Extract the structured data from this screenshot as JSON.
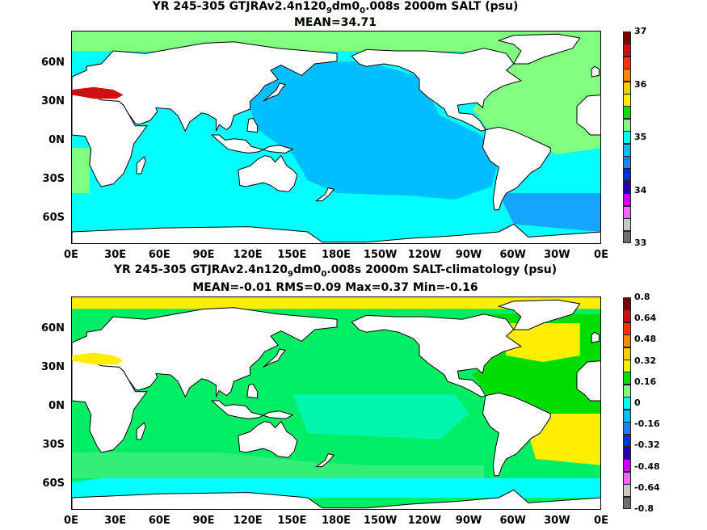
{
  "panels": [
    {
      "title_parts": [
        "YR 245-305 GTJRAv2.4n120",
        "9",
        "dm0",
        "0",
        ".008s 2000m SALT (psu)"
      ],
      "stats": "MEAN=34.71",
      "lat_labels": [
        "60N",
        "30N",
        "0N",
        "30S",
        "60S"
      ],
      "lon_labels": [
        "0E",
        "30E",
        "60E",
        "90E",
        "120E",
        "150E",
        "180E",
        "150W",
        "120W",
        "90W",
        "60W",
        "30W",
        "0E"
      ],
      "colorbar": {
        "labels": [
          "37",
          "36",
          "35",
          "34",
          "33"
        ],
        "colors": [
          "#7a0000",
          "#cc1111",
          "#ff3300",
          "#ff8800",
          "#ffcc00",
          "#ffee00",
          "#00dd00",
          "#80ff80",
          "#00ffff",
          "#00bfff",
          "#1e7fff",
          "#0033cc",
          "#2200aa",
          "#cc00ff",
          "#ff66ff",
          "#c8c8c8",
          "#707070"
        ]
      },
      "map_colors": {
        "land": "#ffffff",
        "ocean": "#00ffff",
        "pacific": "#00bfff",
        "atlantic": "#80ff80",
        "south_atlantic": "#1e7fff",
        "southern": "#00ffff",
        "arctic": "#80ff80",
        "med": "#cc1111"
      }
    },
    {
      "title_parts": [
        "YR 245-305 GTJRAv2.4n120",
        "9",
        "dm0",
        "0",
        ".008s 2000m SALT-climatology (psu)"
      ],
      "stats": "MEAN=-0.01   RMS=0.09   Max=0.37   Min=-0.16",
      "lat_labels": [
        "60N",
        "30N",
        "0N",
        "30S",
        "60S"
      ],
      "lon_labels": [
        "0E",
        "30E",
        "60E",
        "90E",
        "120E",
        "150E",
        "180E",
        "150W",
        "120W",
        "90W",
        "60W",
        "30W",
        "0E"
      ],
      "colorbar": {
        "labels": [
          "0.8",
          "0.64",
          "0.48",
          "0.32",
          "0.16",
          "0",
          "-0.16",
          "-0.32",
          "-0.48",
          "-0.64",
          "-0.8"
        ],
        "colors": [
          "#7a0000",
          "#cc1111",
          "#ff3300",
          "#ff8800",
          "#ffcc00",
          "#ffee00",
          "#00dd00",
          "#80ff80",
          "#00ffff",
          "#00bfff",
          "#1e7fff",
          "#0033cc",
          "#2200aa",
          "#cc00ff",
          "#ff66ff",
          "#c8c8c8",
          "#707070"
        ]
      },
      "map_colors": {
        "land": "#ffffff",
        "ocean": "#00ee66",
        "pacific": "#33ee77",
        "atlantic": "#00dd00",
        "north_atlantic": "#ffee00",
        "southern": "#33ee77",
        "tropics": "#00ffff",
        "arctic": "#ffee00",
        "med": "#ffee00"
      }
    }
  ]
}
